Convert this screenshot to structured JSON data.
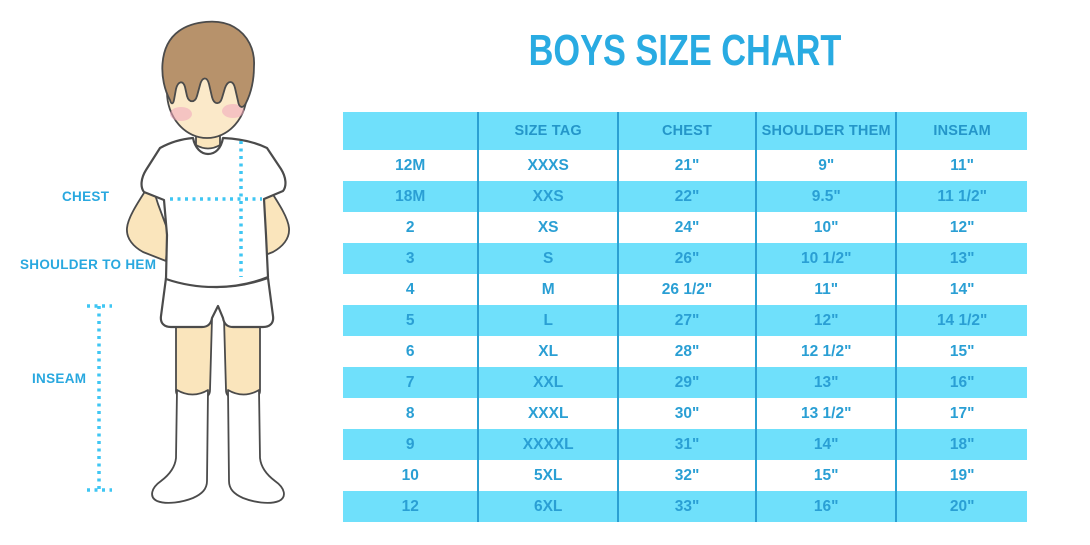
{
  "title": "BOYS SIZE CHART",
  "figure": {
    "chest_label": "CHEST",
    "shoulder_to_hem_label": "SHOULDER TO HEM",
    "inseam_label": "INSEAM"
  },
  "colors": {
    "title_blue": "#29ABE2",
    "label_blue": "#29A8DF",
    "table_fill_light_blue": "#6FE0FB",
    "table_text_blue": "#2A9FD4",
    "table_divider_blue": "#2BA0D2",
    "dotted_line_cyan": "#3FC6F3",
    "skin": "#FAE5BC",
    "hair_brown": "#B7926B",
    "blush_pink": "#F1A6BC",
    "outline_gray": "#4B4B4B"
  },
  "chart_data": {
    "type": "table",
    "title": "BOYS SIZE CHART",
    "columns": [
      "",
      "SIZE TAG",
      "CHEST",
      "SHOULDER THEM",
      "INSEAM"
    ],
    "rows": [
      [
        "12M",
        "XXXS",
        "21\"",
        "9\"",
        "11\""
      ],
      [
        "18M",
        "XXS",
        "22\"",
        "9.5\"",
        "11 1/2\""
      ],
      [
        "2",
        "XS",
        "24\"",
        "10\"",
        "12\""
      ],
      [
        "3",
        "S",
        "26\"",
        "10 1/2\"",
        "13\""
      ],
      [
        "4",
        "M",
        "26 1/2\"",
        "11\"",
        "14\""
      ],
      [
        "5",
        "L",
        "27\"",
        "12\"",
        "14 1/2\""
      ],
      [
        "6",
        "XL",
        "28\"",
        "12 1/2\"",
        "15\""
      ],
      [
        "7",
        "XXL",
        "29\"",
        "13\"",
        "16\""
      ],
      [
        "8",
        "XXXL",
        "30\"",
        "13 1/2\"",
        "17\""
      ],
      [
        "9",
        "XXXXL",
        "31\"",
        "14\"",
        "18\""
      ],
      [
        "10",
        "5XL",
        "32\"",
        "15\"",
        "19\""
      ],
      [
        "12",
        "6XL",
        "33\"",
        "16\"",
        "20\""
      ]
    ],
    "layout": {
      "row_striping": "white and light blue alternating, first data row white",
      "column_dividers": "vertical blue lines only",
      "legend": "none",
      "grid": "off"
    }
  }
}
